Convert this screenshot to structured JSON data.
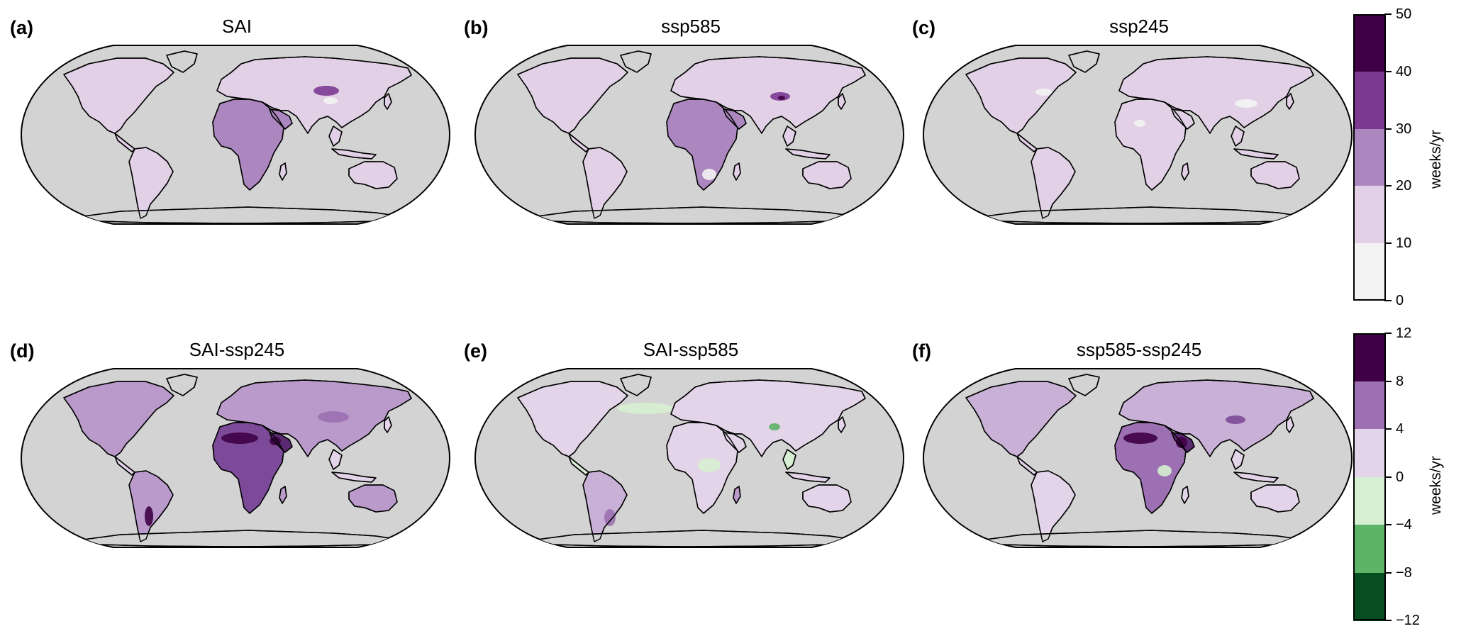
{
  "figure": {
    "rows": [
      {
        "panels": [
          {
            "letter": "(a)",
            "title": "SAI"
          },
          {
            "letter": "(b)",
            "title": "ssp585"
          },
          {
            "letter": "(c)",
            "title": "ssp245"
          }
        ],
        "colorbar": {
          "unit": "weeks/yr",
          "ticks": [
            "50",
            "40",
            "30",
            "20",
            "10",
            "0"
          ],
          "colors": [
            "#3f0045",
            "#7c3a92",
            "#ab86bf",
            "#e2d0e7",
            "#f3f3f3"
          ]
        }
      },
      {
        "panels": [
          {
            "letter": "(d)",
            "title": "SAI-ssp245"
          },
          {
            "letter": "(e)",
            "title": "SAI-ssp585"
          },
          {
            "letter": "(f)",
            "title": "ssp585-ssp245"
          }
        ],
        "colorbar": {
          "unit": "weeks/yr",
          "ticks": [
            "12",
            "8",
            "4",
            "0",
            "−4",
            "−8",
            "−12"
          ],
          "colors": [
            "#3f0045",
            "#9c70b3",
            "#e4d4ea",
            "#d6efd2",
            "#5db366",
            "#064d1f"
          ]
        }
      }
    ],
    "map_colors": {
      "ocean": "#d3d3d3",
      "outline": "#000000"
    }
  }
}
